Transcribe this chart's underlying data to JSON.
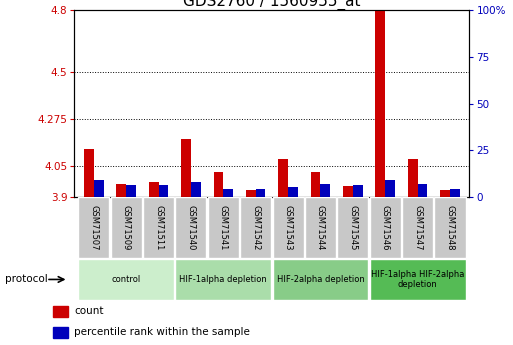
{
  "title": "GDS2760 / 1560955_at",
  "samples": [
    "GSM71507",
    "GSM71509",
    "GSM71511",
    "GSM71540",
    "GSM71541",
    "GSM71542",
    "GSM71543",
    "GSM71544",
    "GSM71545",
    "GSM71546",
    "GSM71547",
    "GSM71548"
  ],
  "count_values": [
    4.13,
    3.96,
    3.97,
    4.18,
    4.02,
    3.93,
    4.08,
    4.02,
    3.95,
    4.82,
    4.08,
    3.93
  ],
  "percentile_values": [
    9,
    6,
    6,
    8,
    4,
    4,
    5,
    7,
    6,
    9,
    7,
    4
  ],
  "ylim_left": [
    3.9,
    4.8
  ],
  "ylim_right": [
    0,
    100
  ],
  "yticks_left": [
    3.9,
    4.05,
    4.275,
    4.5,
    4.8
  ],
  "yticks_right": [
    0,
    25,
    50,
    75,
    100
  ],
  "ytick_labels_left": [
    "3.9",
    "4.05",
    "4.275",
    "4.5",
    "4.8"
  ],
  "ytick_labels_right": [
    "0",
    "25",
    "50",
    "75",
    "100%"
  ],
  "hgrid_values": [
    4.05,
    4.275,
    4.5
  ],
  "bar_width": 0.3,
  "count_color": "#cc0000",
  "percentile_color": "#0000bb",
  "protocol_groups": [
    {
      "label": "control",
      "start": 0,
      "end": 2,
      "color": "#cceecc"
    },
    {
      "label": "HIF-1alpha depletion",
      "start": 3,
      "end": 5,
      "color": "#aaddaa"
    },
    {
      "label": "HIF-2alpha depletion",
      "start": 6,
      "end": 8,
      "color": "#88cc88"
    },
    {
      "label": "HIF-1alpha HIF-2alpha\ndepletion",
      "start": 9,
      "end": 11,
      "color": "#55bb55"
    }
  ],
  "legend_count_label": "count",
  "legend_percentile_label": "percentile rank within the sample",
  "protocol_label": "protocol",
  "title_fontsize": 11,
  "tick_fontsize": 7.5,
  "label_fontsize": 7.5
}
